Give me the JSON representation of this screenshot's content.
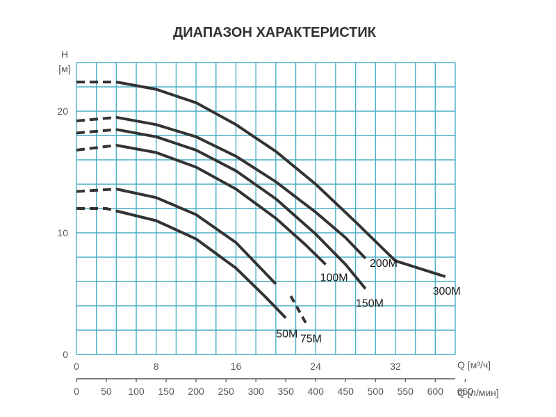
{
  "chart_data": {
    "type": "line",
    "title": "ДИАПАЗОН ХАРАКТЕРИСТИК",
    "ylabel": "H",
    "yunit": "[м]",
    "xlabel": "Q [м³/ч]",
    "x2label": "Q [л/мин]",
    "xlim": [
      0,
      38
    ],
    "ylim": [
      0,
      24
    ],
    "x_ticks": [
      "0",
      "8",
      "16",
      "24",
      "32"
    ],
    "x2_ticks": [
      "0",
      "50",
      "100",
      "150",
      "200",
      "250",
      "300",
      "350",
      "400",
      "450",
      "500",
      "550",
      "600",
      "650"
    ],
    "y_ticks": [
      "0",
      "10",
      "20"
    ],
    "grid": true,
    "colors": {
      "grid": "#4aaec5",
      "curve": "#333333",
      "axis": "#555555"
    },
    "series": [
      {
        "name": "300M",
        "dashed_to_x": 4,
        "points": [
          [
            0,
            22.4
          ],
          [
            4,
            22.4
          ],
          [
            8,
            21.8
          ],
          [
            12,
            20.7
          ],
          [
            16,
            18.9
          ],
          [
            20,
            16.7
          ],
          [
            24,
            14.0
          ],
          [
            28,
            10.9
          ],
          [
            32,
            7.7
          ],
          [
            37,
            6.4
          ]
        ]
      },
      {
        "name": "200M",
        "dashed_to_x": 4,
        "points": [
          [
            0,
            19.2
          ],
          [
            4,
            19.5
          ],
          [
            8,
            18.9
          ],
          [
            12,
            17.9
          ],
          [
            16,
            16.3
          ],
          [
            20,
            14.2
          ],
          [
            24,
            11.7
          ],
          [
            27,
            9.6
          ],
          [
            29,
            7.9
          ]
        ]
      },
      {
        "name": "150M",
        "dashed_to_x": 4,
        "points": [
          [
            0,
            18.2
          ],
          [
            4,
            18.5
          ],
          [
            8,
            17.9
          ],
          [
            12,
            16.8
          ],
          [
            16,
            15.1
          ],
          [
            20,
            12.8
          ],
          [
            24,
            9.9
          ],
          [
            27,
            7.4
          ],
          [
            29,
            5.4
          ]
        ]
      },
      {
        "name": "100M",
        "dashed_to_x": 4,
        "points": [
          [
            0,
            16.8
          ],
          [
            4,
            17.2
          ],
          [
            8,
            16.6
          ],
          [
            12,
            15.4
          ],
          [
            16,
            13.6
          ],
          [
            20,
            11.2
          ],
          [
            23,
            9.0
          ],
          [
            25,
            7.4
          ]
        ]
      },
      {
        "name": "75M",
        "dashed_from_x": 20.5,
        "dashed_to_x": 4,
        "points": [
          [
            0,
            13.4
          ],
          [
            4,
            13.6
          ],
          [
            8,
            12.9
          ],
          [
            12,
            11.5
          ],
          [
            16,
            9.2
          ],
          [
            20,
            5.8
          ],
          [
            21.5,
            4.8
          ],
          [
            23,
            2.6
          ]
        ]
      },
      {
        "name": "50M",
        "dashed_to_x": 4,
        "points": [
          [
            0,
            12.0
          ],
          [
            3,
            12.0
          ],
          [
            4,
            11.8
          ],
          [
            8,
            11.0
          ],
          [
            12,
            9.5
          ],
          [
            16,
            7.1
          ],
          [
            19,
            4.7
          ],
          [
            21,
            3.0
          ]
        ]
      }
    ]
  }
}
